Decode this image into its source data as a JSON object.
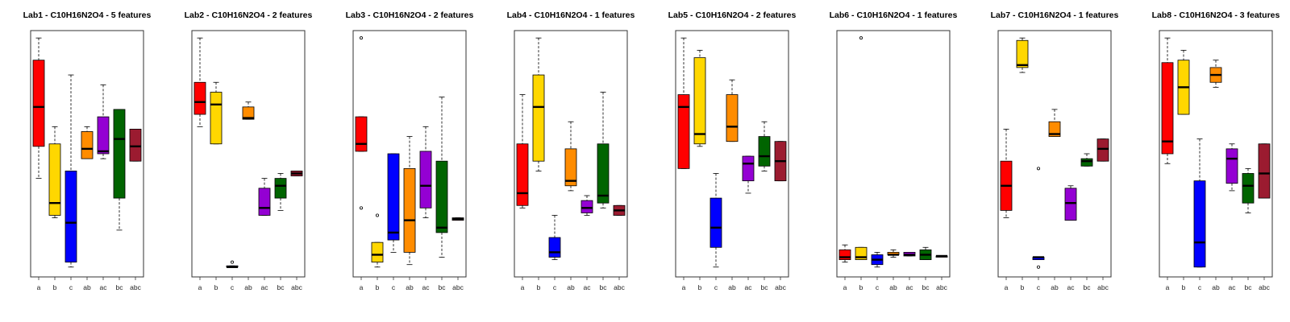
{
  "chart_data": [
    {
      "type": "boxplot",
      "title": "Lab1 - C10H16N2O4 - 5 features",
      "categories": [
        "a",
        "b",
        "c",
        "ab",
        "ac",
        "bc",
        "abc"
      ],
      "ylim": [
        0,
        1
      ],
      "boxes": [
        {
          "min": 0.4,
          "q1": 0.53,
          "median": 0.69,
          "q3": 0.88,
          "max": 0.97
        },
        {
          "min": 0.24,
          "q1": 0.25,
          "median": 0.3,
          "q3": 0.54,
          "max": 0.61
        },
        {
          "min": 0.04,
          "q1": 0.06,
          "median": 0.22,
          "q3": 0.43,
          "max": 0.82
        },
        {
          "min": 0.48,
          "q1": 0.48,
          "median": 0.52,
          "q3": 0.59,
          "max": 0.61
        },
        {
          "min": 0.48,
          "q1": 0.5,
          "median": 0.51,
          "q3": 0.65,
          "max": 0.78
        },
        {
          "min": 0.19,
          "q1": 0.32,
          "median": 0.56,
          "q3": 0.68,
          "max": 0.68
        },
        {
          "min": 0.47,
          "q1": 0.47,
          "median": 0.53,
          "q3": 0.6,
          "max": 0.6
        }
      ]
    },
    {
      "type": "boxplot",
      "title": "Lab2 - C10H16N2O4 - 2 features",
      "categories": [
        "a",
        "b",
        "c",
        "ab",
        "ac",
        "bc",
        "abc"
      ],
      "ylim": [
        0,
        1
      ],
      "boxes": [
        {
          "min": 0.61,
          "q1": 0.66,
          "median": 0.71,
          "q3": 0.79,
          "max": 0.97
        },
        {
          "min": 0.54,
          "q1": 0.54,
          "median": 0.7,
          "q3": 0.75,
          "max": 0.79
        },
        {
          "min": 0.04,
          "q1": 0.04,
          "median": 0.04,
          "q3": 0.045,
          "max": 0.045,
          "outliers": [
            0.06
          ]
        },
        {
          "min": 0.64,
          "q1": 0.64,
          "median": 0.645,
          "q3": 0.69,
          "max": 0.71
        },
        {
          "min": 0.25,
          "q1": 0.25,
          "median": 0.28,
          "q3": 0.36,
          "max": 0.4
        },
        {
          "min": 0.27,
          "q1": 0.32,
          "median": 0.37,
          "q3": 0.4,
          "max": 0.42
        },
        {
          "min": 0.41,
          "q1": 0.41,
          "median": 0.42,
          "q3": 0.43,
          "max": 0.43
        }
      ]
    },
    {
      "type": "boxplot",
      "title": "Lab3 - C10H16N2O4 - 2 features",
      "categories": [
        "a",
        "b",
        "c",
        "ab",
        "ac",
        "bc",
        "abc"
      ],
      "ylim": [
        0,
        1
      ],
      "boxes": [
        {
          "min": 0.51,
          "q1": 0.51,
          "median": 0.54,
          "q3": 0.65,
          "max": 0.65,
          "outliers": [
            0.97,
            0.28
          ]
        },
        {
          "min": 0.04,
          "q1": 0.06,
          "median": 0.09,
          "q3": 0.14,
          "max": 0.14,
          "outliers": [
            0.25
          ]
        },
        {
          "min": 0.1,
          "q1": 0.15,
          "median": 0.18,
          "q3": 0.5,
          "max": 0.5
        },
        {
          "min": 0.05,
          "q1": 0.1,
          "median": 0.23,
          "q3": 0.44,
          "max": 0.57
        },
        {
          "min": 0.24,
          "q1": 0.28,
          "median": 0.37,
          "q3": 0.51,
          "max": 0.61
        },
        {
          "min": 0.08,
          "q1": 0.18,
          "median": 0.2,
          "q3": 0.47,
          "max": 0.73
        },
        {
          "min": 0.23,
          "q1": 0.23,
          "median": 0.235,
          "q3": 0.24,
          "max": 0.24
        }
      ]
    },
    {
      "type": "boxplot",
      "title": "Lab4 - C10H16N2O4 - 1 features",
      "categories": [
        "a",
        "b",
        "c",
        "ab",
        "ac",
        "bc",
        "abc"
      ],
      "ylim": [
        0,
        1
      ],
      "boxes": [
        {
          "min": 0.28,
          "q1": 0.29,
          "median": 0.34,
          "q3": 0.54,
          "max": 0.74
        },
        {
          "min": 0.43,
          "q1": 0.47,
          "median": 0.69,
          "q3": 0.82,
          "max": 0.97
        },
        {
          "min": 0.07,
          "q1": 0.08,
          "median": 0.1,
          "q3": 0.16,
          "max": 0.25
        },
        {
          "min": 0.35,
          "q1": 0.37,
          "median": 0.39,
          "q3": 0.52,
          "max": 0.63
        },
        {
          "min": 0.25,
          "q1": 0.26,
          "median": 0.28,
          "q3": 0.31,
          "max": 0.33
        },
        {
          "min": 0.28,
          "q1": 0.3,
          "median": 0.33,
          "q3": 0.54,
          "max": 0.75
        },
        {
          "min": 0.25,
          "q1": 0.25,
          "median": 0.27,
          "q3": 0.29,
          "max": 0.29
        }
      ]
    },
    {
      "type": "boxplot",
      "title": "Lab5 - C10H16N2O4 - 2 features",
      "categories": [
        "a",
        "b",
        "c",
        "ab",
        "ac",
        "bc",
        "abc"
      ],
      "ylim": [
        0,
        1
      ],
      "boxes": [
        {
          "min": 0.44,
          "q1": 0.44,
          "median": 0.69,
          "q3": 0.74,
          "max": 0.97
        },
        {
          "min": 0.53,
          "q1": 0.54,
          "median": 0.58,
          "q3": 0.89,
          "max": 0.92
        },
        {
          "min": 0.04,
          "q1": 0.12,
          "median": 0.2,
          "q3": 0.32,
          "max": 0.42
        },
        {
          "min": 0.55,
          "q1": 0.55,
          "median": 0.61,
          "q3": 0.74,
          "max": 0.8
        },
        {
          "min": 0.34,
          "q1": 0.39,
          "median": 0.46,
          "q3": 0.49,
          "max": 0.49
        },
        {
          "min": 0.43,
          "q1": 0.45,
          "median": 0.49,
          "q3": 0.57,
          "max": 0.63
        },
        {
          "min": 0.39,
          "q1": 0.39,
          "median": 0.47,
          "q3": 0.55,
          "max": 0.55
        }
      ]
    },
    {
      "type": "boxplot",
      "title": "Lab6 - C10H16N2O4 - 1 features",
      "categories": [
        "a",
        "b",
        "c",
        "ab",
        "ac",
        "bc",
        "abc"
      ],
      "ylim": [
        0,
        1
      ],
      "boxes": [
        {
          "min": 0.06,
          "q1": 0.07,
          "median": 0.08,
          "q3": 0.11,
          "max": 0.13
        },
        {
          "min": 0.07,
          "q1": 0.07,
          "median": 0.08,
          "q3": 0.12,
          "max": 0.12,
          "outliers": [
            0.97
          ]
        },
        {
          "min": 0.04,
          "q1": 0.05,
          "median": 0.07,
          "q3": 0.09,
          "max": 0.1
        },
        {
          "min": 0.08,
          "q1": 0.09,
          "median": 0.09,
          "q3": 0.1,
          "max": 0.11
        },
        {
          "min": 0.085,
          "q1": 0.085,
          "median": 0.09,
          "q3": 0.1,
          "max": 0.1
        },
        {
          "min": 0.07,
          "q1": 0.07,
          "median": 0.09,
          "q3": 0.11,
          "max": 0.12
        },
        {
          "min": 0.085,
          "q1": 0.085,
          "median": 0.085,
          "q3": 0.085,
          "max": 0.085
        }
      ]
    },
    {
      "type": "boxplot",
      "title": "Lab7 - C10H16N2O4 - 1 features",
      "categories": [
        "a",
        "b",
        "c",
        "ab",
        "ac",
        "bc",
        "abc"
      ],
      "ylim": [
        0,
        1
      ],
      "boxes": [
        {
          "min": 0.24,
          "q1": 0.27,
          "median": 0.37,
          "q3": 0.47,
          "max": 0.6
        },
        {
          "min": 0.83,
          "q1": 0.85,
          "median": 0.86,
          "q3": 0.96,
          "max": 0.97
        },
        {
          "min": 0.07,
          "q1": 0.07,
          "median": 0.08,
          "q3": 0.08,
          "max": 0.08,
          "outliers": [
            0.44,
            0.04
          ]
        },
        {
          "min": 0.57,
          "q1": 0.57,
          "median": 0.58,
          "q3": 0.63,
          "max": 0.68
        },
        {
          "min": 0.23,
          "q1": 0.23,
          "median": 0.3,
          "q3": 0.36,
          "max": 0.37
        },
        {
          "min": 0.45,
          "q1": 0.45,
          "median": 0.47,
          "q3": 0.48,
          "max": 0.5
        },
        {
          "min": 0.47,
          "q1": 0.47,
          "median": 0.52,
          "q3": 0.56,
          "max": 0.56
        }
      ]
    },
    {
      "type": "boxplot",
      "title": "Lab8 - C10H16N2O4 - 3 features",
      "categories": [
        "a",
        "b",
        "c",
        "ab",
        "ac",
        "bc",
        "abc"
      ],
      "ylim": [
        0,
        1
      ],
      "boxes": [
        {
          "min": 0.46,
          "q1": 0.5,
          "median": 0.55,
          "q3": 0.87,
          "max": 0.97
        },
        {
          "min": 0.66,
          "q1": 0.66,
          "median": 0.77,
          "q3": 0.88,
          "max": 0.92
        },
        {
          "min": 0.04,
          "q1": 0.04,
          "median": 0.14,
          "q3": 0.39,
          "max": 0.56
        },
        {
          "min": 0.77,
          "q1": 0.79,
          "median": 0.82,
          "q3": 0.85,
          "max": 0.88
        },
        {
          "min": 0.35,
          "q1": 0.38,
          "median": 0.48,
          "q3": 0.52,
          "max": 0.54
        },
        {
          "min": 0.26,
          "q1": 0.3,
          "median": 0.37,
          "q3": 0.42,
          "max": 0.44
        },
        {
          "min": 0.32,
          "q1": 0.32,
          "median": 0.42,
          "q3": 0.54,
          "max": 0.54
        }
      ]
    }
  ],
  "colors": [
    "#ff0000",
    "#ffd700",
    "#0000ff",
    "#ff8c00",
    "#9400d3",
    "#006400",
    "#9b1b30"
  ]
}
